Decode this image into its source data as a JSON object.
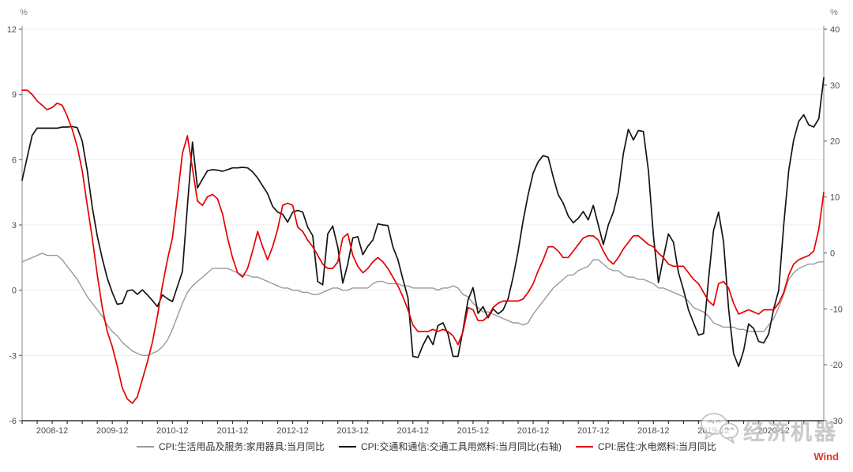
{
  "watermark": {
    "text": "经济机器",
    "brand": "Wind",
    "brand_color": "#e8312f",
    "icon": "wechat-bubbles-icon",
    "color": "#bdbdbd"
  },
  "legend": [
    {
      "label": "CPI:生活用品及服务:家用器具:当月同比",
      "color": "#999999"
    },
    {
      "label": "CPI:交通和通信:交通工具用燃料:当月同比(右轴)",
      "color": "#141414"
    },
    {
      "label": "CPI:居住:水电燃料:当月同比",
      "color": "#e60000"
    }
  ],
  "chart_data": {
    "type": "line",
    "frequency": "monthly",
    "x_start": "2008-06",
    "x_end": "2021-10",
    "grid": "horizontal-light",
    "legend_position": "bottom-center",
    "left_axis": {
      "unit": "%",
      "min": -6,
      "max": 12,
      "ticks": [
        12,
        9,
        6,
        3,
        0,
        -3,
        -6
      ]
    },
    "right_axis": {
      "unit": "%",
      "min": -30,
      "max": 40,
      "ticks": [
        40,
        30,
        20,
        10,
        0,
        -10,
        -20,
        -30
      ]
    },
    "x_tick_labels": [
      "2008-12",
      "2009-12",
      "2010-12",
      "2011-12",
      "2012-12",
      "2013-12",
      "2014-12",
      "2015-12",
      "2016-12",
      "2017-12",
      "2018-12",
      "2019-12",
      "2020-12"
    ],
    "series": [
      {
        "name": "CPI:生活用品及服务:家用器具:当月同比",
        "axis": "left",
        "color": "#999999",
        "width": 1.4,
        "values": [
          1.3,
          1.4,
          1.5,
          1.6,
          1.7,
          1.6,
          1.6,
          1.6,
          1.4,
          1.1,
          0.8,
          0.5,
          0.1,
          -0.3,
          -0.6,
          -0.9,
          -1.2,
          -1.6,
          -1.9,
          -2.1,
          -2.4,
          -2.6,
          -2.8,
          -2.9,
          -3.0,
          -3.0,
          -2.9,
          -2.8,
          -2.6,
          -2.3,
          -1.8,
          -1.2,
          -0.6,
          -0.1,
          0.2,
          0.4,
          0.6,
          0.8,
          1.0,
          1.0,
          1.0,
          1.0,
          0.9,
          0.8,
          0.7,
          0.7,
          0.6,
          0.6,
          0.5,
          0.4,
          0.3,
          0.2,
          0.1,
          0.1,
          0.0,
          0.0,
          -0.1,
          -0.1,
          -0.2,
          -0.2,
          -0.1,
          0.0,
          0.1,
          0.1,
          0.0,
          0.0,
          0.1,
          0.1,
          0.1,
          0.1,
          0.3,
          0.4,
          0.4,
          0.3,
          0.3,
          0.3,
          0.2,
          0.2,
          0.1,
          0.1,
          0.1,
          0.1,
          0.1,
          0.0,
          0.1,
          0.1,
          0.2,
          0.1,
          -0.2,
          -0.3,
          -0.6,
          -0.8,
          -1.0,
          -1.0,
          -1.1,
          -1.2,
          -1.3,
          -1.4,
          -1.5,
          -1.5,
          -1.6,
          -1.5,
          -1.1,
          -0.8,
          -0.5,
          -0.2,
          0.1,
          0.3,
          0.5,
          0.7,
          0.7,
          0.9,
          1.0,
          1.1,
          1.4,
          1.4,
          1.2,
          1.0,
          0.9,
          0.9,
          0.7,
          0.6,
          0.6,
          0.5,
          0.5,
          0.4,
          0.3,
          0.1,
          0.1,
          0.0,
          -0.1,
          -0.2,
          -0.3,
          -0.5,
          -0.8,
          -0.9,
          -1.0,
          -1.2,
          -1.5,
          -1.6,
          -1.7,
          -1.7,
          -1.7,
          -1.8,
          -1.8,
          -1.9,
          -1.9,
          -1.9,
          -1.9,
          -1.6,
          -1.3,
          -0.8,
          -0.2,
          0.5,
          0.8,
          1.0,
          1.1,
          1.2,
          1.2,
          1.3,
          1.3
        ]
      },
      {
        "name": "CPI:交通和通信:交通工具用燃料:当月同比(右轴)",
        "axis": "right",
        "color": "#141414",
        "width": 1.7,
        "values": [
          13.0,
          17.0,
          21.0,
          22.3,
          22.3,
          22.3,
          22.3,
          22.3,
          22.5,
          22.5,
          22.6,
          22.4,
          20.0,
          14.7,
          8.2,
          3.0,
          -1.0,
          -4.5,
          -7.1,
          -9.2,
          -9.0,
          -6.8,
          -6.6,
          -7.4,
          -6.6,
          -7.5,
          -8.5,
          -9.6,
          -7.5,
          -8.2,
          -8.7,
          -6.0,
          -3.3,
          8.4,
          19.8,
          11.6,
          13.2,
          14.7,
          14.9,
          14.8,
          14.6,
          14.9,
          15.2,
          15.2,
          15.3,
          15.2,
          14.5,
          13.4,
          12.0,
          10.6,
          8.3,
          7.3,
          6.9,
          5.5,
          7.3,
          7.6,
          7.3,
          4.6,
          3.1,
          -5.1,
          -5.7,
          3.4,
          4.8,
          1.0,
          -5.4,
          -2.0,
          2.7,
          2.9,
          -0.3,
          1.2,
          2.3,
          5.2,
          5.0,
          4.9,
          1.1,
          -1.2,
          -4.7,
          -8.0,
          -18.5,
          -18.7,
          -16.5,
          -14.8,
          -16.4,
          -13.0,
          -12.5,
          -14.5,
          -18.5,
          -18.5,
          -13.7,
          -8.4,
          -6.2,
          -10.8,
          -9.6,
          -11.6,
          -10.0,
          -10.9,
          -10.2,
          -8.2,
          -4.3,
          0.3,
          5.8,
          10.4,
          14.3,
          16.3,
          17.4,
          17.1,
          13.6,
          10.4,
          8.9,
          6.6,
          5.4,
          6.2,
          7.4,
          5.9,
          8.5,
          5.0,
          1.5,
          5.0,
          7.3,
          10.9,
          17.8,
          22.1,
          20.2,
          21.9,
          21.7,
          14.7,
          3.1,
          -5.3,
          -0.8,
          3.4,
          1.9,
          -3.5,
          -6.6,
          -10.2,
          -12.5,
          -14.7,
          -14.4,
          -4.7,
          4.0,
          7.3,
          2.0,
          -10.0,
          -18.0,
          -20.3,
          -17.5,
          -12.7,
          -13.5,
          -15.8,
          -16.1,
          -14.5,
          -10.0,
          -6.7,
          5.0,
          14.7,
          20.2,
          23.5,
          24.7,
          22.9,
          22.5,
          24.0,
          31.3
        ]
      },
      {
        "name": "CPI:居住:水电燃料:当月同比",
        "axis": "left",
        "color": "#e60000",
        "width": 1.7,
        "values": [
          9.2,
          9.2,
          9.0,
          8.7,
          8.5,
          8.3,
          8.4,
          8.6,
          8.5,
          8.0,
          7.4,
          6.6,
          5.5,
          3.9,
          2.4,
          0.7,
          -0.8,
          -1.9,
          -2.6,
          -3.5,
          -4.5,
          -5.0,
          -5.2,
          -4.9,
          -4.1,
          -3.3,
          -2.4,
          -1.2,
          0.2,
          1.4,
          2.4,
          4.3,
          6.3,
          7.1,
          5.6,
          4.1,
          3.9,
          4.3,
          4.4,
          4.2,
          3.5,
          2.4,
          1.5,
          0.8,
          0.6,
          1.0,
          1.8,
          2.7,
          2.0,
          1.4,
          2.0,
          2.8,
          3.9,
          4.0,
          3.9,
          2.9,
          2.7,
          2.3,
          2.0,
          1.6,
          1.2,
          1.0,
          1.0,
          1.3,
          2.4,
          2.6,
          1.6,
          1.1,
          0.8,
          1.0,
          1.3,
          1.5,
          1.3,
          1.0,
          0.6,
          0.2,
          -0.3,
          -0.9,
          -1.6,
          -1.9,
          -1.9,
          -1.9,
          -1.8,
          -1.9,
          -1.8,
          -1.9,
          -2.1,
          -2.5,
          -1.9,
          -0.8,
          -0.9,
          -1.4,
          -1.4,
          -1.2,
          -0.8,
          -0.6,
          -0.5,
          -0.5,
          -0.5,
          -0.5,
          -0.4,
          -0.1,
          0.3,
          0.9,
          1.4,
          2.0,
          2.0,
          1.8,
          1.5,
          1.5,
          1.8,
          2.1,
          2.4,
          2.5,
          2.5,
          2.3,
          1.8,
          1.4,
          1.2,
          1.5,
          1.9,
          2.2,
          2.5,
          2.5,
          2.3,
          2.1,
          2.0,
          1.7,
          1.5,
          1.2,
          1.1,
          1.1,
          1.1,
          0.8,
          0.5,
          0.3,
          -0.1,
          -0.5,
          -0.7,
          0.3,
          0.4,
          0.1,
          -0.6,
          -1.1,
          -1.0,
          -0.9,
          -1.0,
          -1.1,
          -0.9,
          -0.9,
          -0.9,
          -0.6,
          -0.1,
          0.7,
          1.2,
          1.4,
          1.5,
          1.6,
          1.8,
          2.8,
          4.5
        ]
      }
    ]
  }
}
